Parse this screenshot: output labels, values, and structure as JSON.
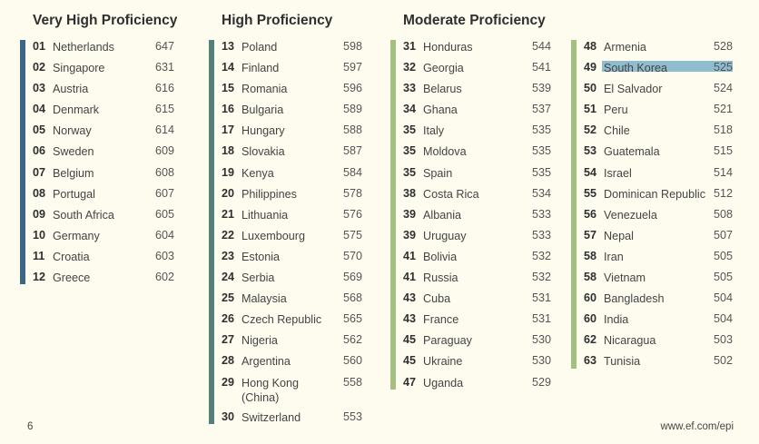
{
  "headings": [
    "Very High Proficiency",
    "High Proficiency",
    "Moderate Proficiency",
    ""
  ],
  "colors": {
    "very_high": "#3d6585",
    "high": "#55807a",
    "moderate": "#a4bf82",
    "highlight": "#8fbccf"
  },
  "columns": [
    {
      "rows": [
        {
          "rank": "01",
          "country": "Netherlands",
          "score": "647"
        },
        {
          "rank": "02",
          "country": "Singapore",
          "score": "631"
        },
        {
          "rank": "03",
          "country": "Austria",
          "score": "616"
        },
        {
          "rank": "04",
          "country": "Denmark",
          "score": "615"
        },
        {
          "rank": "05",
          "country": "Norway",
          "score": "614"
        },
        {
          "rank": "06",
          "country": "Sweden",
          "score": "609"
        },
        {
          "rank": "07",
          "country": "Belgium",
          "score": "608"
        },
        {
          "rank": "08",
          "country": "Portugal",
          "score": "607"
        },
        {
          "rank": "09",
          "country": "South Africa",
          "score": "605"
        },
        {
          "rank": "10",
          "country": "Germany",
          "score": "604"
        },
        {
          "rank": "11",
          "country": "Croatia",
          "score": "603"
        },
        {
          "rank": "12",
          "country": "Greece",
          "score": "602"
        }
      ]
    },
    {
      "rows": [
        {
          "rank": "13",
          "country": "Poland",
          "score": "598"
        },
        {
          "rank": "14",
          "country": "Finland",
          "score": "597"
        },
        {
          "rank": "15",
          "country": "Romania",
          "score": "596"
        },
        {
          "rank": "16",
          "country": "Bulgaria",
          "score": "589"
        },
        {
          "rank": "17",
          "country": "Hungary",
          "score": "588"
        },
        {
          "rank": "18",
          "country": "Slovakia",
          "score": "587"
        },
        {
          "rank": "19",
          "country": "Kenya",
          "score": "584"
        },
        {
          "rank": "20",
          "country": "Philippines",
          "score": "578"
        },
        {
          "rank": "21",
          "country": "Lithuania",
          "score": "576"
        },
        {
          "rank": "22",
          "country": "Luxembourg",
          "score": "575"
        },
        {
          "rank": "23",
          "country": "Estonia",
          "score": "570"
        },
        {
          "rank": "24",
          "country": "Serbia",
          "score": "569"
        },
        {
          "rank": "25",
          "country": "Malaysia",
          "score": "568"
        },
        {
          "rank": "26",
          "country": "Czech Republic",
          "score": "565"
        },
        {
          "rank": "27",
          "country": "Nigeria",
          "score": "562"
        },
        {
          "rank": "28",
          "country": "Argentina",
          "score": "560"
        },
        {
          "rank": "29",
          "country": "Hong Kong\n(China)",
          "score": "558"
        },
        {
          "rank": "30",
          "country": "Switzerland",
          "score": "553"
        }
      ]
    },
    {
      "rows": [
        {
          "rank": "31",
          "country": "Honduras",
          "score": "544"
        },
        {
          "rank": "32",
          "country": "Georgia",
          "score": "541"
        },
        {
          "rank": "33",
          "country": "Belarus",
          "score": "539"
        },
        {
          "rank": "34",
          "country": "Ghana",
          "score": "537"
        },
        {
          "rank": "35",
          "country": "Italy",
          "score": "535"
        },
        {
          "rank": "35",
          "country": "Moldova",
          "score": "535"
        },
        {
          "rank": "35",
          "country": "Spain",
          "score": "535"
        },
        {
          "rank": "38",
          "country": "Costa Rica",
          "score": "534"
        },
        {
          "rank": "39",
          "country": "Albania",
          "score": "533"
        },
        {
          "rank": "39",
          "country": "Uruguay",
          "score": "533"
        },
        {
          "rank": "41",
          "country": "Bolivia",
          "score": "532"
        },
        {
          "rank": "41",
          "country": "Russia",
          "score": "532"
        },
        {
          "rank": "43",
          "country": "Cuba",
          "score": "531"
        },
        {
          "rank": "43",
          "country": "France",
          "score": "531"
        },
        {
          "rank": "45",
          "country": "Paraguay",
          "score": "530"
        },
        {
          "rank": "45",
          "country": "Ukraine",
          "score": "530"
        },
        {
          "rank": "47",
          "country": "Uganda",
          "score": "529"
        }
      ]
    },
    {
      "rows": [
        {
          "rank": "48",
          "country": "Armenia",
          "score": "528"
        },
        {
          "rank": "49",
          "country": "South Korea",
          "score": "525",
          "highlighted": true
        },
        {
          "rank": "50",
          "country": "El Salvador",
          "score": "524"
        },
        {
          "rank": "51",
          "country": "Peru",
          "score": "521"
        },
        {
          "rank": "52",
          "country": "Chile",
          "score": "518"
        },
        {
          "rank": "53",
          "country": "Guatemala",
          "score": "515"
        },
        {
          "rank": "54",
          "country": "Israel",
          "score": "514"
        },
        {
          "rank": "55",
          "country": "Dominican Republic",
          "score": "512"
        },
        {
          "rank": "56",
          "country": "Venezuela",
          "score": "508"
        },
        {
          "rank": "57",
          "country": "Nepal",
          "score": "507"
        },
        {
          "rank": "58",
          "country": "Iran",
          "score": "505"
        },
        {
          "rank": "58",
          "country": "Vietnam",
          "score": "505"
        },
        {
          "rank": "60",
          "country": "Bangladesh",
          "score": "504"
        },
        {
          "rank": "60",
          "country": "India",
          "score": "504"
        },
        {
          "rank": "62",
          "country": "Nicaragua",
          "score": "503"
        },
        {
          "rank": "63",
          "country": "Tunisia",
          "score": "502"
        }
      ]
    }
  ],
  "footer": {
    "page_number": "6",
    "url": "www.ef.com/epi"
  }
}
